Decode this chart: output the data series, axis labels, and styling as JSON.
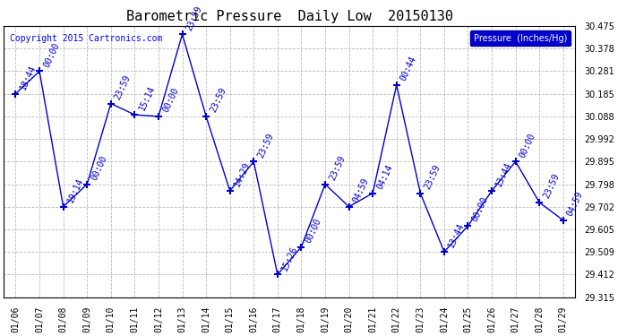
{
  "title": "Barometric Pressure  Daily Low  20150130",
  "copyright": "Copyright 2015 Cartronics.com",
  "legend_label": "Pressure  (Inches/Hg)",
  "x_labels": [
    "01/06",
    "01/07",
    "01/08",
    "01/09",
    "01/10",
    "01/11",
    "01/12",
    "01/13",
    "01/14",
    "01/15",
    "01/16",
    "01/17",
    "01/18",
    "01/19",
    "01/20",
    "01/21",
    "01/22",
    "01/23",
    "01/24",
    "01/25",
    "01/26",
    "01/27",
    "01/28",
    "01/29"
  ],
  "data_labels": [
    "18:44",
    "00:00",
    "19:14",
    "00:00",
    "23:59",
    "15:14",
    "00:00",
    "23:59",
    "23:59",
    "14:29",
    "23:59",
    "15:26",
    "00:00",
    "23:59",
    "04:59",
    "04:14",
    "00:44",
    "23:59",
    "13:44",
    "00:00",
    "13:44",
    "00:00",
    "23:59",
    "04:59"
  ],
  "values": [
    30.185,
    30.281,
    29.702,
    29.798,
    30.143,
    30.095,
    30.088,
    30.439,
    30.088,
    29.77,
    29.895,
    29.412,
    29.53,
    29.798,
    29.702,
    29.76,
    30.222,
    29.76,
    29.509,
    29.62,
    29.77,
    29.895,
    29.72,
    29.644
  ],
  "ylim_min": 29.315,
  "ylim_max": 30.475,
  "yticks": [
    29.315,
    29.412,
    29.509,
    29.605,
    29.702,
    29.798,
    29.895,
    29.992,
    30.088,
    30.185,
    30.281,
    30.378,
    30.475
  ],
  "line_color": "#0000cc",
  "marker_color": "#0000cc",
  "grid_color": "#bbbbbb",
  "background_color": "#ffffff",
  "title_fontsize": 11,
  "label_fontsize": 7,
  "annotation_fontsize": 7,
  "copyright_fontsize": 7
}
